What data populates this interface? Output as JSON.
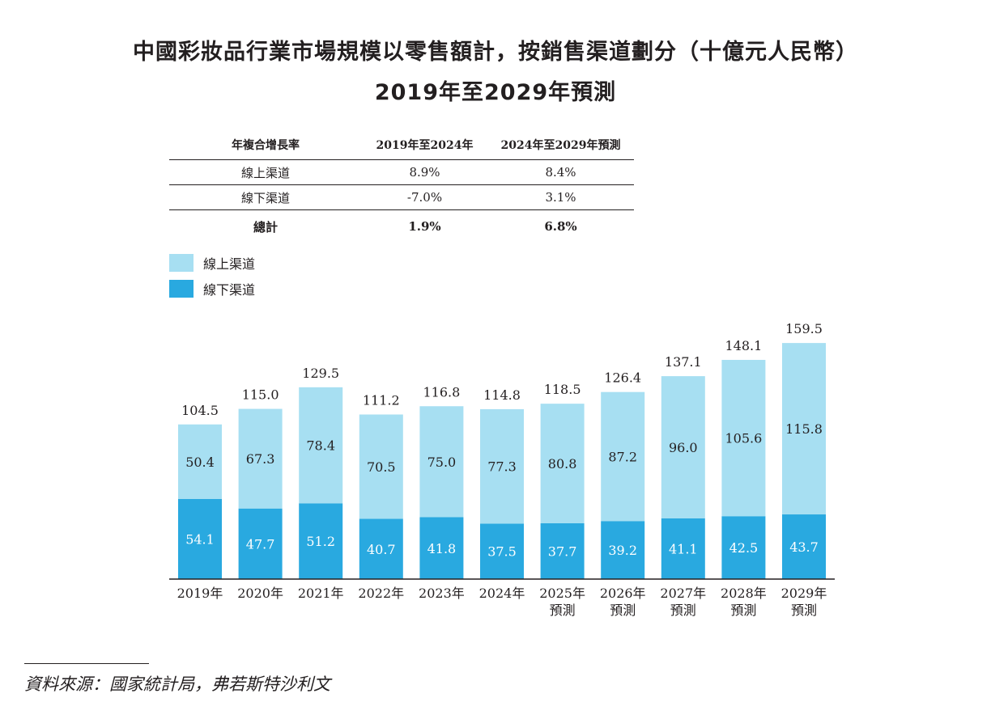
{
  "title_line1": "中國彩妝品行業市場規模以零售額計，按銷售渠道劃分（十億元人民幣）",
  "title_line2": "2019年至2029年預測",
  "cagr_table": {
    "header": [
      "年複合增長率",
      "2019年至2024年",
      "2024年至2029年預測"
    ],
    "rows": [
      {
        "label": "線上渠道",
        "v1": "8.9%",
        "v2": "8.4%"
      },
      {
        "label": "線下渠道",
        "v1": "-7.0%",
        "v2": "3.1%"
      },
      {
        "label": "總計",
        "v1": "1.9%",
        "v2": "6.8%"
      }
    ]
  },
  "legend": [
    {
      "label": "線上渠道",
      "color": "#a7dff2"
    },
    {
      "label": "線下渠道",
      "color": "#29a9e0"
    }
  ],
  "chart_data": {
    "type": "bar",
    "stacked": true,
    "categories": [
      {
        "year": "2019年",
        "sub": ""
      },
      {
        "year": "2020年",
        "sub": ""
      },
      {
        "year": "2021年",
        "sub": ""
      },
      {
        "year": "2022年",
        "sub": ""
      },
      {
        "year": "2023年",
        "sub": ""
      },
      {
        "year": "2024年",
        "sub": ""
      },
      {
        "year": "2025年",
        "sub": "預測"
      },
      {
        "year": "2026年",
        "sub": "預測"
      },
      {
        "year": "2027年",
        "sub": "預測"
      },
      {
        "year": "2028年",
        "sub": "預測"
      },
      {
        "year": "2029年",
        "sub": "預測"
      }
    ],
    "series": [
      {
        "name": "線下渠道",
        "color": "#29a9e0",
        "label_color": "#ffffff",
        "values": [
          54.1,
          47.7,
          51.2,
          40.7,
          41.8,
          37.5,
          37.7,
          39.2,
          41.1,
          42.5,
          43.7
        ],
        "labels": [
          "54.1",
          "47.7",
          "51.2",
          "40.7",
          "41.8",
          "37.5",
          "37.7",
          "39.2",
          "41.1",
          "42.5",
          "43.7"
        ]
      },
      {
        "name": "線上渠道",
        "color": "#a7dff2",
        "label_color": "#231f20",
        "values": [
          50.4,
          67.3,
          78.4,
          70.5,
          75.0,
          77.3,
          80.8,
          87.2,
          96.0,
          105.6,
          115.8
        ],
        "labels": [
          "50.4",
          "67.3",
          "78.4",
          "70.5",
          "75.0",
          "77.3",
          "80.8",
          "87.2",
          "96.0",
          "105.6",
          "115.8"
        ]
      }
    ],
    "totals": [
      104.5,
      115.0,
      129.5,
      111.2,
      116.8,
      114.8,
      118.5,
      126.4,
      137.1,
      148.1,
      159.5
    ],
    "total_labels": [
      "104.5",
      "115.0",
      "129.5",
      "111.2",
      "116.8",
      "114.8",
      "118.5",
      "126.4",
      "137.1",
      "148.1",
      "159.5"
    ],
    "unit": "十億元人民幣"
  },
  "source_note": "資料來源：國家統計局，弗若斯特沙利文"
}
